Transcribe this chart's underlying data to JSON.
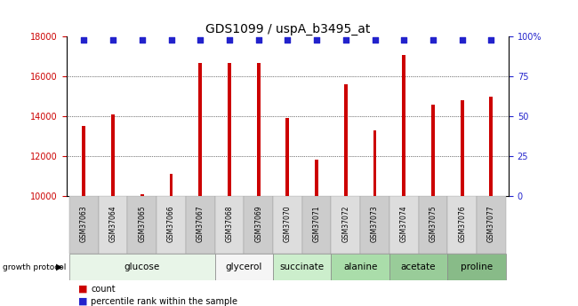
{
  "title": "GDS1099 / uspA_b3495_at",
  "samples": [
    "GSM37063",
    "GSM37064",
    "GSM37065",
    "GSM37066",
    "GSM37067",
    "GSM37068",
    "GSM37069",
    "GSM37070",
    "GSM37071",
    "GSM37072",
    "GSM37073",
    "GSM37074",
    "GSM37075",
    "GSM37076",
    "GSM37077"
  ],
  "counts": [
    13500,
    14100,
    10100,
    11100,
    16700,
    16700,
    16700,
    13900,
    11800,
    15600,
    13300,
    17100,
    14600,
    14800,
    15000
  ],
  "ylim_left": [
    10000,
    18000
  ],
  "ylim_right": [
    0,
    100
  ],
  "bar_color": "#cc0000",
  "dot_color": "#2222cc",
  "groups": [
    {
      "label": "glucose",
      "start": 0,
      "end": 5
    },
    {
      "label": "glycerol",
      "start": 5,
      "end": 7
    },
    {
      "label": "succinate",
      "start": 7,
      "end": 9
    },
    {
      "label": "alanine",
      "start": 9,
      "end": 11
    },
    {
      "label": "acetate",
      "start": 11,
      "end": 13
    },
    {
      "label": "proline",
      "start": 13,
      "end": 15
    }
  ],
  "group_colors": {
    "glucose": "#e8f5e8",
    "glycerol": "#f5f5f5",
    "succinate": "#cceecc",
    "alanine": "#aaddaa",
    "acetate": "#99cc99",
    "proline": "#88bb88"
  },
  "legend_count_label": "count",
  "legend_pct_label": "percentile rank within the sample",
  "growth_protocol_label": "growth protocol",
  "background_color": "#ffffff",
  "tick_color_left": "#cc0000",
  "tick_color_right": "#2222cc",
  "title_fontsize": 10,
  "tick_fontsize": 7,
  "sample_fontsize": 5.5,
  "group_fontsize": 7.5
}
